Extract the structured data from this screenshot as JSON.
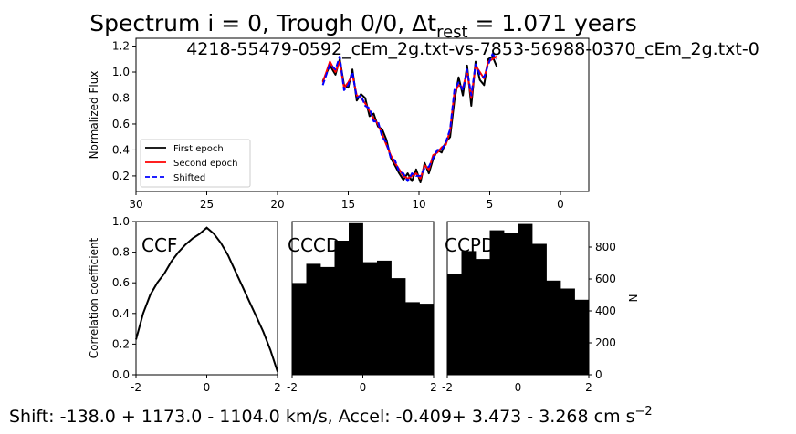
{
  "figure": {
    "title_main": "Spectrum i = 0, Trough 0/0, Δt",
    "title_sub": "rest",
    "title_tail": " = 1.071 years",
    "bottom_main": "Shift: -138.0 + 1173.0 - 1104.0 km/s, Accel: -0.409+ 3.473 - 3.268 cm s",
    "bottom_sup": "−2"
  },
  "colors": {
    "first_epoch": "#000000",
    "second_epoch": "#ff0000",
    "shifted": "#0000ff",
    "bars": "#000000"
  },
  "chart_data": [
    {
      "id": "spectrum",
      "type": "line",
      "title": "4218-55479-0592_cEm_2g.txt-vs-7853-56988-0370_cEm_2g.txt-0",
      "xlabel": "",
      "ylabel": "Normalized Flux",
      "xlim": [
        30,
        -2
      ],
      "ylim": [
        0.08,
        1.26
      ],
      "xticks": [
        30,
        25,
        20,
        15,
        10,
        5,
        0
      ],
      "yticks": [
        0.2,
        0.4,
        0.6,
        0.8,
        1.0,
        1.2
      ],
      "legend_position": "lower-left",
      "series": [
        {
          "name": "First epoch",
          "color": "#000000",
          "dash": "solid",
          "x": [
            16.8,
            16.3,
            15.9,
            15.6,
            15.3,
            15.0,
            14.7,
            14.4,
            14.1,
            13.8,
            13.5,
            13.2,
            12.9,
            12.6,
            12.3,
            12.0,
            11.7,
            11.4,
            11.1,
            10.8,
            10.5,
            10.2,
            9.9,
            9.6,
            9.3,
            9.0,
            8.7,
            8.4,
            8.1,
            7.8,
            7.5,
            7.2,
            6.9,
            6.6,
            6.3,
            6.0,
            5.7,
            5.4,
            5.1,
            4.8,
            4.5
          ],
          "y": [
            0.93,
            1.05,
            0.98,
            1.1,
            0.9,
            0.88,
            1.02,
            0.78,
            0.83,
            0.8,
            0.66,
            0.68,
            0.58,
            0.56,
            0.48,
            0.34,
            0.28,
            0.22,
            0.17,
            0.22,
            0.16,
            0.25,
            0.15,
            0.3,
            0.22,
            0.33,
            0.4,
            0.38,
            0.46,
            0.5,
            0.78,
            0.96,
            0.82,
            1.05,
            0.74,
            1.08,
            0.94,
            0.9,
            1.1,
            1.12,
            1.04
          ]
        },
        {
          "name": "Second epoch",
          "color": "#ff0000",
          "dash": "solid",
          "x": [
            16.8,
            16.3,
            15.9,
            15.6,
            15.3,
            15.0,
            14.7,
            14.4,
            14.1,
            13.8,
            13.5,
            13.2,
            12.9,
            12.6,
            12.3,
            12.0,
            11.7,
            11.4,
            11.1,
            10.8,
            10.5,
            10.2,
            9.9,
            9.6,
            9.3,
            9.0,
            8.7,
            8.4,
            8.1,
            7.8,
            7.5,
            7.2,
            6.9,
            6.6,
            6.3,
            6.0,
            5.7,
            5.4,
            5.1,
            4.8,
            4.5
          ],
          "y": [
            0.92,
            1.08,
            1.0,
            1.08,
            0.88,
            0.92,
            0.98,
            0.82,
            0.8,
            0.76,
            0.7,
            0.64,
            0.6,
            0.52,
            0.44,
            0.36,
            0.3,
            0.25,
            0.2,
            0.18,
            0.2,
            0.22,
            0.18,
            0.28,
            0.25,
            0.36,
            0.38,
            0.42,
            0.44,
            0.55,
            0.84,
            0.9,
            0.88,
            1.0,
            0.8,
            1.05,
            1.0,
            0.95,
            1.08,
            1.1,
            1.12
          ]
        },
        {
          "name": "Shifted",
          "color": "#0000ff",
          "dash": "dashed",
          "x": [
            16.8,
            16.3,
            15.9,
            15.6,
            15.3,
            15.0,
            14.7,
            14.4,
            14.1,
            13.8,
            13.5,
            13.2,
            12.9,
            12.6,
            12.3,
            12.0,
            11.7,
            11.4,
            11.1,
            10.8,
            10.5,
            10.2,
            9.9,
            9.6,
            9.3,
            9.0,
            8.7,
            8.4,
            8.1,
            7.8,
            7.5,
            7.2,
            6.9,
            6.6,
            6.3,
            6.0,
            5.7,
            5.4,
            5.1,
            4.8,
            4.5
          ],
          "y": [
            0.9,
            1.06,
            1.02,
            1.12,
            0.86,
            0.9,
            1.0,
            0.8,
            0.82,
            0.74,
            0.72,
            0.62,
            0.62,
            0.5,
            0.46,
            0.34,
            0.32,
            0.23,
            0.22,
            0.16,
            0.22,
            0.2,
            0.2,
            0.26,
            0.27,
            0.34,
            0.4,
            0.4,
            0.46,
            0.56,
            0.86,
            0.92,
            0.86,
            1.02,
            0.82,
            1.06,
            0.98,
            0.96,
            1.06,
            1.14,
            1.1
          ]
        }
      ]
    },
    {
      "id": "ccf",
      "type": "line",
      "label": "CCF",
      "ylabel": "Correlation coefficient",
      "xlim": [
        -2,
        2
      ],
      "ylim": [
        0,
        1
      ],
      "xticks": [
        -2,
        0,
        2
      ],
      "yticks": [
        0.0,
        0.2,
        0.4,
        0.6,
        0.8,
        1.0
      ],
      "series": [
        {
          "name": "",
          "color": "#000000",
          "x": [
            -2.0,
            -1.8,
            -1.6,
            -1.4,
            -1.2,
            -1.0,
            -0.8,
            -0.6,
            -0.4,
            -0.2,
            0.0,
            0.2,
            0.4,
            0.6,
            0.8,
            1.0,
            1.2,
            1.4,
            1.6,
            1.8,
            2.0
          ],
          "y": [
            0.23,
            0.4,
            0.52,
            0.6,
            0.66,
            0.74,
            0.8,
            0.85,
            0.89,
            0.92,
            0.96,
            0.92,
            0.86,
            0.78,
            0.68,
            0.58,
            0.48,
            0.38,
            0.28,
            0.16,
            0.02
          ]
        }
      ]
    },
    {
      "id": "cccd",
      "type": "bar",
      "label": "CCCD",
      "xlim": [
        -2,
        2
      ],
      "ylim": [
        0,
        960
      ],
      "xticks": [
        -2,
        0,
        2
      ],
      "bin_edges": [
        -2.0,
        -1.6,
        -1.2,
        -0.8,
        -0.4,
        0.0,
        0.4,
        0.8,
        1.2,
        1.6,
        2.0
      ],
      "values": [
        575,
        695,
        675,
        840,
        950,
        705,
        715,
        605,
        455,
        445
      ]
    },
    {
      "id": "ccpd",
      "type": "bar",
      "label": "CCPD",
      "ylabel": "N",
      "xlim": [
        -2,
        2
      ],
      "ylim": [
        0,
        960
      ],
      "xticks": [
        -2,
        0,
        2
      ],
      "yticks": [
        0,
        200,
        400,
        600,
        800
      ],
      "bin_edges": [
        -2.0,
        -1.6,
        -1.2,
        -0.8,
        -0.4,
        0.0,
        0.4,
        0.8,
        1.2,
        1.6,
        2.0
      ],
      "values": [
        630,
        775,
        725,
        905,
        890,
        945,
        820,
        590,
        540,
        470
      ]
    }
  ]
}
